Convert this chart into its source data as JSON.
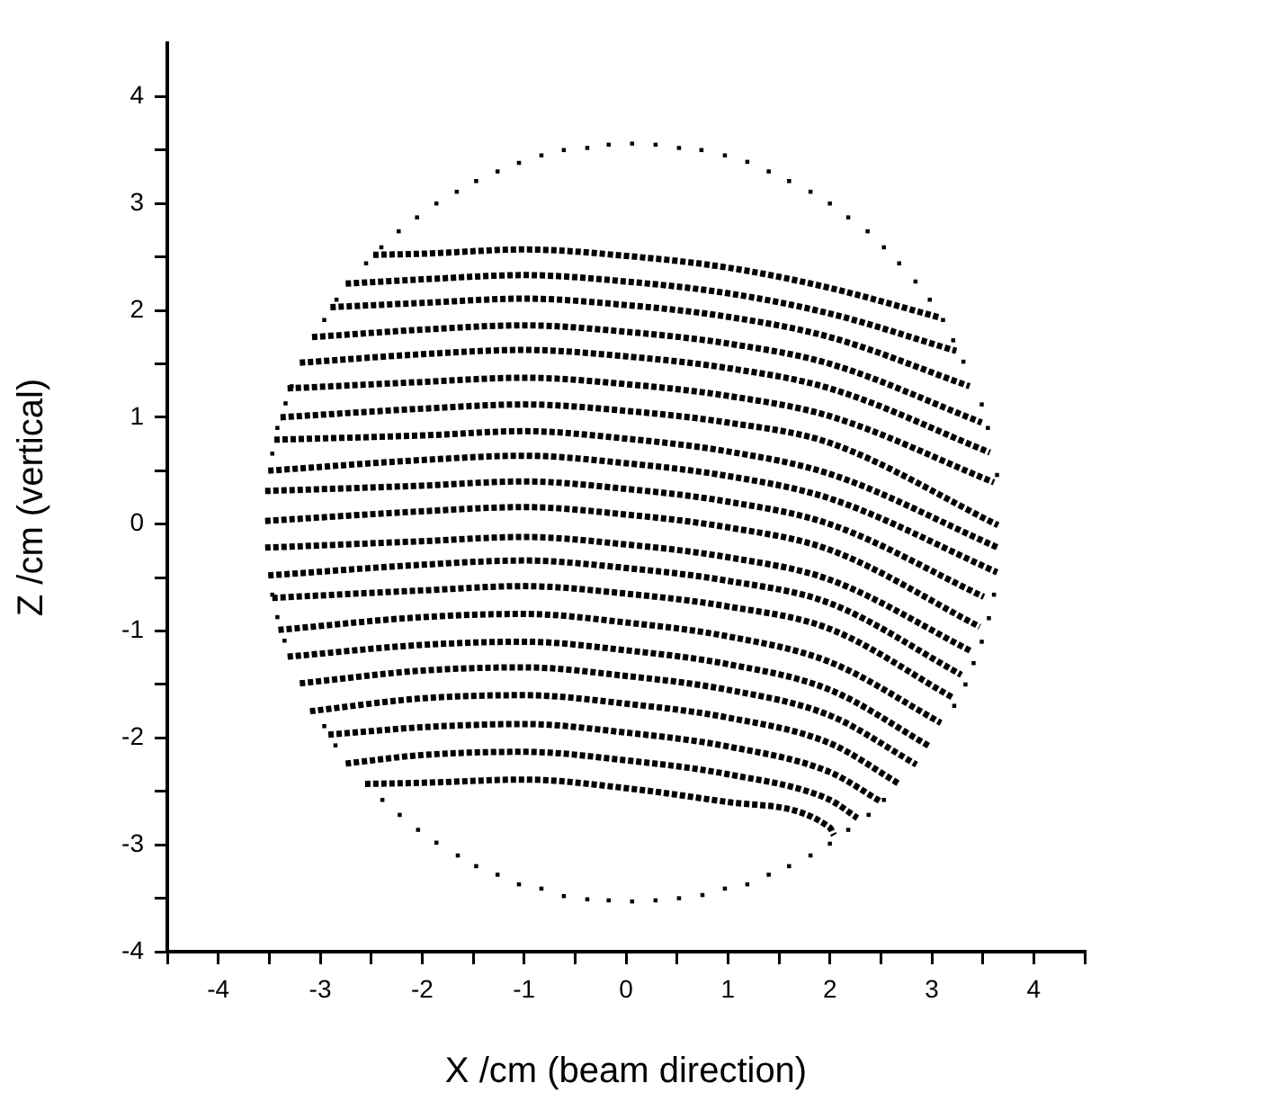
{
  "chart_data": {
    "type": "scatter",
    "xlabel": "X /cm (beam direction)",
    "ylabel": "Z /cm (vertical)",
    "xlim": [
      -4.5,
      4.5
    ],
    "ylim": [
      -4,
      4.5
    ],
    "xticks": [
      {
        "value": -4.5,
        "label": null
      },
      -4,
      {
        "value": -3.5,
        "label": null
      },
      -3,
      {
        "value": -2.5,
        "label": null
      },
      -2,
      {
        "value": -1.5,
        "label": null
      },
      -1,
      {
        "value": -0.5,
        "label": null
      },
      0,
      {
        "value": 0.5,
        "label": null
      },
      1,
      {
        "value": 1.5,
        "label": null
      },
      2,
      {
        "value": 2.5,
        "label": null
      },
      3,
      {
        "value": 3.5,
        "label": null
      },
      4,
      {
        "value": 4.5,
        "label": null
      }
    ],
    "yticks": [
      -4,
      {
        "value": -3.5,
        "label": null
      },
      -3,
      {
        "value": -2.5,
        "label": null
      },
      -2,
      {
        "value": -1.5,
        "label": null
      },
      -1,
      {
        "value": -0.5,
        "label": null
      },
      0,
      {
        "value": 0.5,
        "label": null
      },
      1,
      {
        "value": 1.5,
        "label": null
      },
      2,
      {
        "value": 2.5,
        "label": null
      },
      3,
      {
        "value": 3.5,
        "label": null
      },
      4
    ],
    "grid": false,
    "series": [
      {
        "type": "scatter",
        "marker": "square",
        "color": "#000000",
        "x": [
          -2.55,
          -2.4,
          -2.23,
          -2.05,
          -1.86,
          -1.66,
          -1.47,
          -1.26,
          -1.05,
          -0.83,
          -0.61,
          -0.38,
          -0.17,
          0.06,
          0.29,
          0.52,
          0.74,
          0.97,
          1.19,
          1.4,
          1.6,
          1.81,
          2.0,
          2.18,
          2.37,
          2.53,
          2.68,
          2.84,
          2.98,
          3.11,
          3.21,
          3.31,
          3.49,
          3.55,
          3.64,
          -2.84,
          -2.96,
          -3.28,
          -3.34,
          -3.42,
          -3.47,
          -2.39,
          -2.22,
          -2.04,
          -1.86,
          -1.65,
          -1.47,
          -1.26,
          -1.05,
          -0.83,
          -0.61,
          -0.38,
          -0.17,
          0.06,
          0.29,
          0.52,
          0.75,
          0.97,
          1.19,
          1.4,
          1.6,
          1.81,
          2.0,
          2.18,
          2.38,
          2.53,
          3.22,
          3.33,
          3.41,
          3.49,
          3.56,
          3.61,
          -3.47,
          -3.42,
          -3.35,
          -2.96,
          -2.85
        ],
        "values": [
          2.44,
          2.59,
          2.74,
          2.87,
          3.0,
          3.11,
          3.21,
          3.3,
          3.38,
          3.45,
          3.5,
          3.52,
          3.55,
          3.56,
          3.55,
          3.52,
          3.5,
          3.45,
          3.39,
          3.3,
          3.21,
          3.11,
          3.0,
          2.87,
          2.74,
          2.59,
          2.44,
          2.27,
          2.1,
          1.91,
          1.72,
          1.52,
          1.12,
          0.9,
          0.46,
          2.1,
          1.91,
          1.29,
          1.13,
          0.9,
          0.66,
          -2.58,
          -2.72,
          -2.86,
          -2.98,
          -3.1,
          -3.2,
          -3.28,
          -3.37,
          -3.41,
          -3.48,
          -3.51,
          -3.52,
          -3.53,
          -3.52,
          -3.5,
          -3.47,
          -3.41,
          -3.37,
          -3.28,
          -3.2,
          -3.1,
          -2.99,
          -2.86,
          -2.72,
          -2.58,
          -1.7,
          -1.5,
          -1.3,
          -1.1,
          -0.88,
          -0.66,
          -0.66,
          -0.87,
          -1.09,
          -1.89,
          -2.07
        ]
      },
      {
        "type": "line",
        "marker": "none",
        "line_style": "dotted",
        "color": "#000000",
        "x": [
          -2.48,
          -2,
          -1,
          0,
          1,
          2,
          3.09
        ],
        "values": [
          2.52,
          2.53,
          2.57,
          2.51,
          2.4,
          2.21,
          1.93
        ]
      },
      {
        "type": "line",
        "marker": "none",
        "line_style": "dotted",
        "color": "#000000",
        "x": [
          -2.75,
          -2,
          -1,
          0,
          1,
          2,
          3.24
        ],
        "values": [
          2.25,
          2.29,
          2.33,
          2.27,
          2.16,
          1.97,
          1.62
        ]
      },
      {
        "type": "line",
        "marker": "none",
        "line_style": "dotted",
        "color": "#000000",
        "x": [
          -2.9,
          -2,
          -1,
          0,
          1,
          2,
          3.37
        ],
        "values": [
          2.03,
          2.07,
          2.11,
          2.05,
          1.94,
          1.75,
          1.29
        ]
      },
      {
        "type": "line",
        "marker": "none",
        "line_style": "dotted",
        "color": "#000000",
        "x": [
          -3.08,
          -2,
          -1,
          0,
          1,
          2,
          3.49
        ],
        "values": [
          1.75,
          1.82,
          1.86,
          1.8,
          1.69,
          1.5,
          0.95
        ]
      },
      {
        "type": "line",
        "marker": "none",
        "line_style": "dotted",
        "color": "#000000",
        "x": [
          -3.2,
          -2,
          -1,
          0,
          1,
          2,
          3.57
        ],
        "values": [
          1.51,
          1.59,
          1.63,
          1.57,
          1.46,
          1.27,
          0.67
        ]
      },
      {
        "type": "line",
        "marker": "none",
        "line_style": "dotted",
        "color": "#000000",
        "x": [
          -3.32,
          -2,
          -1,
          0,
          1,
          2,
          3.61
        ],
        "values": [
          1.27,
          1.33,
          1.37,
          1.31,
          1.2,
          1.01,
          0.39
        ]
      },
      {
        "type": "line",
        "marker": "none",
        "line_style": "dotted",
        "color": "#000000",
        "x": [
          -3.39,
          -2,
          -1,
          0,
          1,
          2,
          3.65
        ],
        "values": [
          1.0,
          1.08,
          1.12,
          1.06,
          0.95,
          0.76,
          -0.01
        ]
      },
      {
        "type": "line",
        "marker": "none",
        "line_style": "dotted",
        "color": "#000000",
        "x": [
          -3.45,
          -2,
          -1,
          0,
          1,
          2,
          3.65
        ],
        "values": [
          0.79,
          0.83,
          0.87,
          0.8,
          0.68,
          0.47,
          -0.22
        ]
      },
      {
        "type": "line",
        "marker": "none",
        "line_style": "dotted",
        "color": "#000000",
        "x": [
          -3.51,
          -2,
          -1,
          0,
          1,
          2,
          3.64
        ],
        "values": [
          0.5,
          0.6,
          0.64,
          0.57,
          0.45,
          0.24,
          -0.45
        ]
      },
      {
        "type": "line",
        "marker": "none",
        "line_style": "dotted",
        "color": "#000000",
        "x": [
          -3.54,
          -2,
          -1,
          0,
          1,
          2,
          3.51
        ],
        "values": [
          0.31,
          0.36,
          0.4,
          0.33,
          0.21,
          0.0,
          -0.68
        ]
      },
      {
        "type": "line",
        "marker": "none",
        "line_style": "dotted",
        "color": "#000000",
        "x": [
          -3.54,
          -2,
          -1,
          0,
          1,
          2,
          3.47
        ],
        "values": [
          0.03,
          0.12,
          0.16,
          0.09,
          -0.03,
          -0.24,
          -0.96
        ]
      },
      {
        "type": "line",
        "marker": "none",
        "line_style": "dotted",
        "color": "#000000",
        "x": [
          -3.54,
          -2,
          -1,
          0,
          1,
          2,
          3.39
        ],
        "values": [
          -0.22,
          -0.16,
          -0.12,
          -0.19,
          -0.31,
          -0.52,
          -1.19
        ]
      },
      {
        "type": "line",
        "marker": "none",
        "line_style": "dotted",
        "color": "#000000",
        "x": [
          -3.51,
          -2,
          -1,
          0,
          1,
          2,
          3.29
        ],
        "values": [
          -0.48,
          -0.38,
          -0.34,
          -0.41,
          -0.53,
          -0.74,
          -1.41
        ]
      },
      {
        "type": "line",
        "marker": "none",
        "line_style": "dotted",
        "color": "#000000",
        "x": [
          -3.47,
          -2,
          -1,
          0,
          1,
          2,
          3.2
        ],
        "values": [
          -0.69,
          -0.62,
          -0.58,
          -0.65,
          -0.77,
          -0.98,
          -1.62
        ]
      },
      {
        "type": "line",
        "marker": "none",
        "line_style": "dotted",
        "color": "#000000",
        "x": [
          -3.41,
          -2,
          -1,
          0,
          1,
          2,
          3.09
        ],
        "values": [
          -0.99,
          -0.87,
          -0.84,
          -0.92,
          -1.05,
          -1.29,
          -1.86
        ]
      },
      {
        "type": "line",
        "marker": "none",
        "line_style": "dotted",
        "color": "#000000",
        "x": [
          -3.32,
          -2,
          -1,
          0,
          1,
          2,
          2.98
        ],
        "values": [
          -1.24,
          -1.13,
          -1.1,
          -1.18,
          -1.31,
          -1.55,
          -2.08
        ]
      },
      {
        "type": "line",
        "marker": "none",
        "line_style": "dotted",
        "color": "#000000",
        "x": [
          -3.2,
          -2,
          -1,
          0,
          1,
          2,
          2.85
        ],
        "values": [
          -1.49,
          -1.37,
          -1.34,
          -1.42,
          -1.55,
          -1.79,
          -2.25
        ]
      },
      {
        "type": "line",
        "marker": "none",
        "line_style": "dotted",
        "color": "#000000",
        "x": [
          -3.1,
          -2,
          -1,
          0,
          1,
          2,
          2.68
        ],
        "values": [
          -1.75,
          -1.63,
          -1.6,
          -1.68,
          -1.81,
          -2.05,
          -2.43
        ]
      },
      {
        "type": "line",
        "marker": "none",
        "line_style": "dotted",
        "color": "#000000",
        "x": [
          -2.92,
          -2,
          -1,
          0,
          1,
          2,
          2.49
        ],
        "values": [
          -1.97,
          -1.9,
          -1.87,
          -1.95,
          -2.08,
          -2.32,
          -2.59
        ]
      },
      {
        "type": "line",
        "marker": "none",
        "line_style": "dotted",
        "color": "#000000",
        "x": [
          -2.75,
          -2,
          -1,
          0,
          1,
          2,
          2.27
        ],
        "values": [
          -2.24,
          -2.16,
          -2.13,
          -2.21,
          -2.34,
          -2.58,
          -2.75
        ]
      },
      {
        "type": "line",
        "marker": "none",
        "line_style": "dotted",
        "color": "#000000",
        "x": [
          -2.56,
          -2,
          -1,
          0,
          1,
          2,
          2.04
        ],
        "values": [
          -2.43,
          -2.42,
          -2.39,
          -2.47,
          -2.6,
          -2.84,
          -2.91
        ]
      }
    ]
  }
}
